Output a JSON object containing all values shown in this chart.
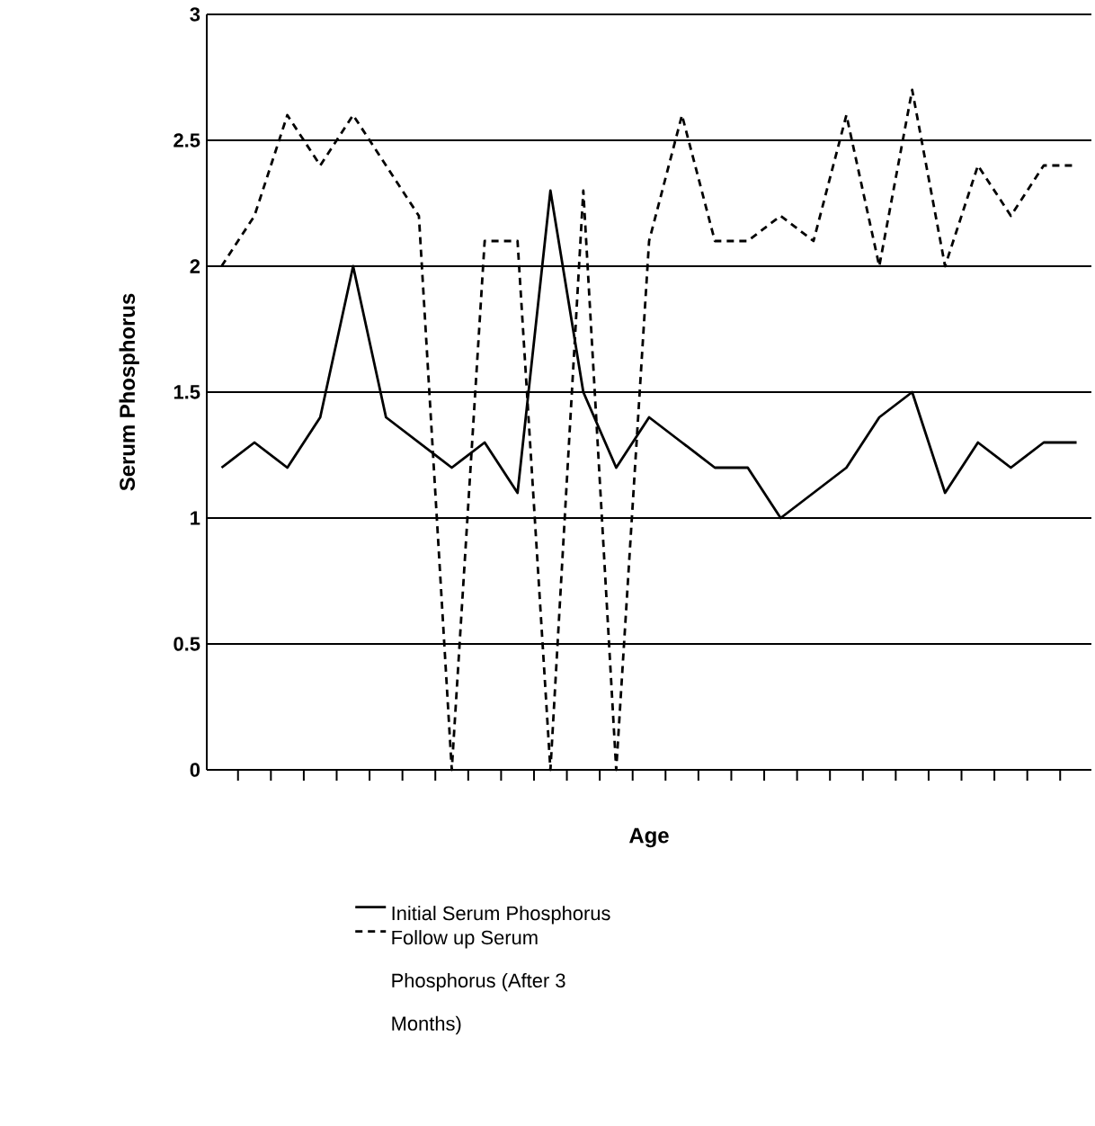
{
  "chart_data": {
    "type": "line",
    "xlabel": "Age",
    "ylabel": "Serum Phosphorus",
    "categories": [
      null,
      null,
      null,
      null,
      null,
      null,
      null,
      null,
      null,
      null,
      null,
      null,
      null,
      null,
      null,
      null,
      null,
      null,
      null,
      null,
      null,
      null,
      null,
      null,
      null,
      null,
      null
    ],
    "series": [
      {
        "name": "Initial Serum Phosphorus",
        "color": "#000000",
        "line_style": "solid",
        "values": [
          1.2,
          1.3,
          1.2,
          1.4,
          2.0,
          1.4,
          1.3,
          1.2,
          1.3,
          1.1,
          2.3,
          1.5,
          1.2,
          1.4,
          1.3,
          1.2,
          1.2,
          1.0,
          1.1,
          1.2,
          1.4,
          1.5,
          1.1,
          1.3,
          1.2,
          1.3,
          1.3
        ]
      },
      {
        "name": "Follow up Serum Phosphorus (After 3 Months)",
        "color": "#000000",
        "line_style": "dashed",
        "values": [
          2.0,
          2.2,
          2.6,
          2.4,
          2.6,
          2.4,
          2.2,
          0,
          2.1,
          2.1,
          0,
          2.3,
          0,
          2.1,
          2.6,
          2.1,
          2.1,
          2.2,
          2.1,
          2.6,
          2.0,
          2.7,
          2.0,
          2.4,
          2.2,
          2.4,
          2.4
        ]
      }
    ],
    "ylim": [
      0,
      3
    ],
    "yticks": [
      0,
      0.5,
      1,
      1.5,
      2,
      2.5,
      3
    ],
    "grid": "y",
    "legend": "bottom"
  }
}
